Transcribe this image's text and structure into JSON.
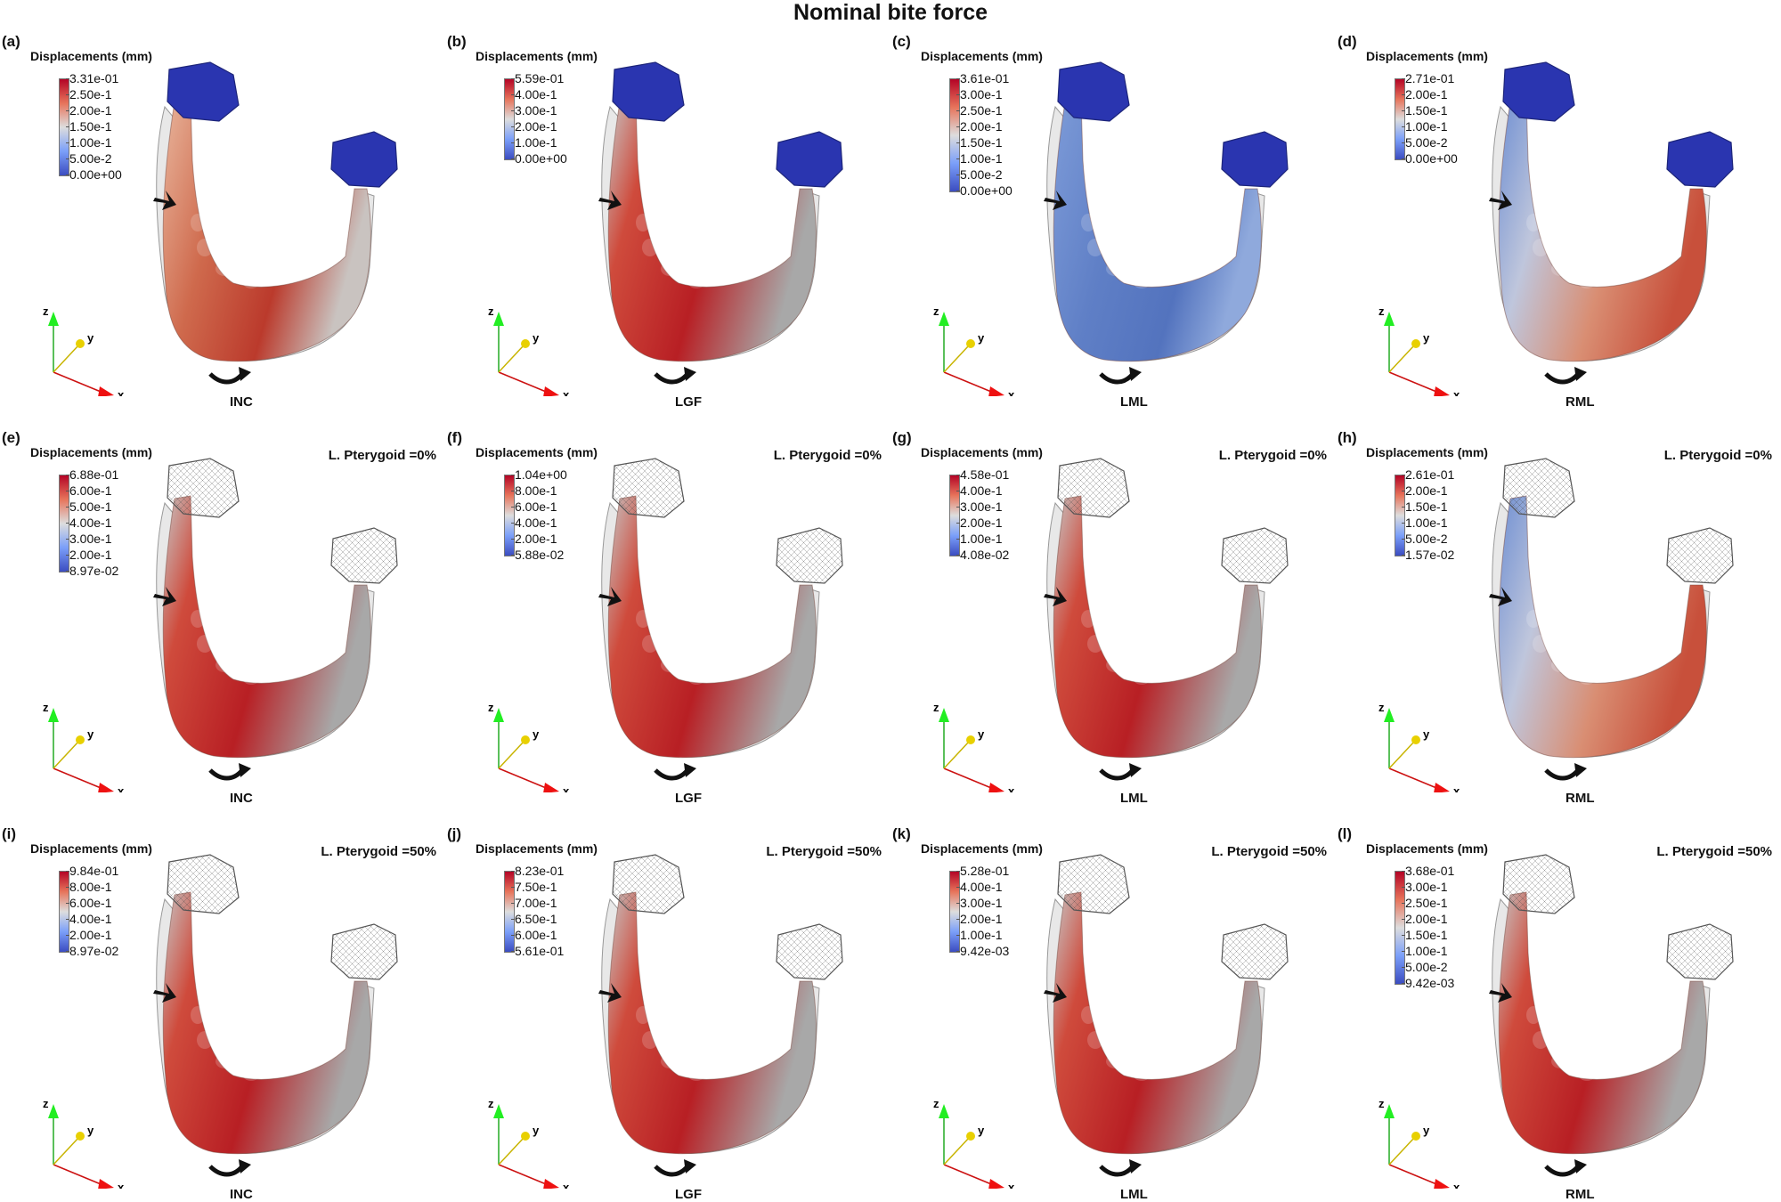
{
  "title": "Nominal bite force",
  "colorbar_title": "Displacements (mm)",
  "axes": {
    "x": "x",
    "y": "y",
    "z": "z"
  },
  "colors": {
    "mesh_blue": "#2a35b0",
    "high": "#b40426",
    "mid": "#dddddd",
    "low": "#3b4cc0"
  },
  "panels": [
    {
      "letter": "(a)",
      "case": "INC",
      "condition": "",
      "colormap": "medium",
      "show_blocks": true,
      "ticks": [
        "3.31e-01",
        "2.50e-1",
        "2.00e-1",
        "1.50e-1",
        "1.00e-1",
        "5.00e-2",
        "0.00e+00"
      ]
    },
    {
      "letter": "(b)",
      "case": "LGF",
      "condition": "",
      "colormap": "red",
      "show_blocks": true,
      "ticks": [
        "5.59e-01",
        "4.00e-1",
        "3.00e-1",
        "2.00e-1",
        "1.00e-1",
        "0.00e+00"
      ]
    },
    {
      "letter": "(c)",
      "case": "LML",
      "condition": "",
      "colormap": "blue",
      "show_blocks": true,
      "ticks": [
        "3.61e-01",
        "3.00e-1",
        "2.50e-1",
        "2.00e-1",
        "1.50e-1",
        "1.00e-1",
        "5.00e-2",
        "0.00e+00"
      ]
    },
    {
      "letter": "(d)",
      "case": "RML",
      "condition": "",
      "colormap": "mixed",
      "show_blocks": true,
      "ticks": [
        "2.71e-01",
        "2.00e-1",
        "1.50e-1",
        "1.00e-1",
        "5.00e-2",
        "0.00e+00"
      ]
    },
    {
      "letter": "(e)",
      "case": "INC",
      "condition": "L. Pterygoid =0%",
      "colormap": "red",
      "show_blocks": false,
      "ticks": [
        "6.88e-01",
        "6.00e-1",
        "5.00e-1",
        "4.00e-1",
        "3.00e-1",
        "2.00e-1",
        "8.97e-02"
      ]
    },
    {
      "letter": "(f)",
      "case": "LGF",
      "condition": "L. Pterygoid =0%",
      "colormap": "red",
      "show_blocks": false,
      "ticks": [
        "1.04e+00",
        "8.00e-1",
        "6.00e-1",
        "4.00e-1",
        "2.00e-1",
        "5.88e-02"
      ]
    },
    {
      "letter": "(g)",
      "case": "LML",
      "condition": "L. Pterygoid =0%",
      "colormap": "red",
      "show_blocks": false,
      "ticks": [
        "4.58e-01",
        "4.00e-1",
        "3.00e-1",
        "2.00e-1",
        "1.00e-1",
        "4.08e-02"
      ]
    },
    {
      "letter": "(h)",
      "case": "RML",
      "condition": "L. Pterygoid =0%",
      "colormap": "mixed",
      "show_blocks": false,
      "ticks": [
        "2.61e-01",
        "2.00e-1",
        "1.50e-1",
        "1.00e-1",
        "5.00e-2",
        "1.57e-02"
      ]
    },
    {
      "letter": "(i)",
      "case": "INC",
      "condition": "L. Pterygoid =50%",
      "colormap": "red",
      "show_blocks": false,
      "ticks": [
        "9.84e-01",
        "8.00e-1",
        "6.00e-1",
        "4.00e-1",
        "2.00e-1",
        "8.97e-02"
      ]
    },
    {
      "letter": "(j)",
      "case": "LGF",
      "condition": "L. Pterygoid =50%",
      "colormap": "red",
      "show_blocks": false,
      "ticks": [
        "8.23e-01",
        "7.50e-1",
        "7.00e-1",
        "6.50e-1",
        "6.00e-1",
        "5.61e-01"
      ]
    },
    {
      "letter": "(k)",
      "case": "LML",
      "condition": "L. Pterygoid =50%",
      "colormap": "red",
      "show_blocks": false,
      "ticks": [
        "5.28e-01",
        "4.00e-1",
        "3.00e-1",
        "2.00e-1",
        "1.00e-1",
        "9.42e-03"
      ]
    },
    {
      "letter": "(l)",
      "case": "RML",
      "condition": "L. Pterygoid =50%",
      "colormap": "red",
      "show_blocks": false,
      "ticks": [
        "3.68e-01",
        "3.00e-1",
        "2.50e-1",
        "2.00e-1",
        "1.50e-1",
        "1.00e-1",
        "5.00e-2",
        "9.42e-03"
      ]
    }
  ]
}
